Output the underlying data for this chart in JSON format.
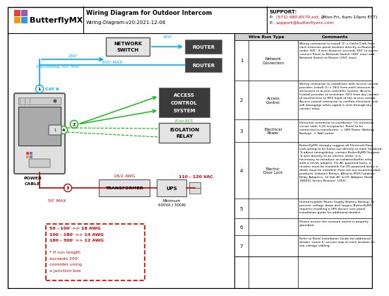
{
  "title": "Wiring Diagram for Outdoor Intercom",
  "subtitle": "Wiring-Diagram-v20-2021-12-08",
  "support_title": "SUPPORT:",
  "support_phone_prefix": "P: ",
  "support_phone_red": "(571) 480.6579 ext. 2",
  "support_phone_suffix": " (Mon-Fri, 6am-10pm EST)",
  "support_email_prefix": "E: ",
  "support_email_red": "support@butterflymx.com",
  "bg_color": "#ffffff",
  "diagram_bg": "#ffffff",
  "wire_cat6": "#00aaff",
  "wire_green": "#00bb00",
  "wire_red": "#cc0000",
  "logo_colors": [
    "#e84040",
    "#9b59b6",
    "#f39c12",
    "#3498db"
  ],
  "table_rows": [
    {
      "num": "1",
      "type": "Network Connection",
      "comment": "Wiring contractor to install (1) x Cat5e/Cat6 from each Intercom panel location directly to Router if under 300'. If wire distance exceeds 300' to router, connect Panel to Network Switch (300' max) and Network Switch to Router (250' max)."
    },
    {
      "num": "2",
      "type": "Access Control",
      "comment": "Wiring contractor to coordinate with access control provider, install (1) x 18/2 from each Intercom to a/c/screen to access controller system. Access Control provider to terminate 18/2 from dry contact of touchscreen to REX Input of the access control. Access control contractor to confirm electronic lock will disengage when signal is sent through dry contact relay."
    },
    {
      "num": "3",
      "type": "Electrical Power",
      "comment": "Electrical contractor to coordinate: (1) electrical circuit (with 3-20 receptacle). Panel to be connected to transformer -> UPS Power (Battery Backup) -> Wall outlet"
    },
    {
      "num": "4",
      "type": "Electric Door Lock",
      "comment": "ButterflyMX strongly suggest all Electrical Door Lock wiring to be home-run directly to main headend. To adjust timing/delay, contact ButterflyMX Support. To wire directly to an electric strike, it is necessary to introduce an isolation/buffer relay with a 12vdc adapter. For AC-powered locks, a resistor must be installed. For DC-powered locks, a diode must be installed.\nHere are our recommended products:\nIsolation Relays: Altronix IR5S Isolation Relay\nAdapters: 12 Volt AC to DC Adapter\nDiode: 1N4001 Series\nResistor: 1450i"
    },
    {
      "num": "5",
      "type": "",
      "comment": "Uninterruptible Power Supply Battery Backup. To prevent voltage drops and surges, ButterflyMX requires installing a UPS device (see panel installation guide for additional details)."
    },
    {
      "num": "6",
      "type": "",
      "comment": "Please ensure the network switch is properly grounded."
    },
    {
      "num": "7",
      "type": "",
      "comment": "Refer to Panel Installation Guide for additional details. Leave 6' service loop at each location for low voltage cabling."
    }
  ]
}
